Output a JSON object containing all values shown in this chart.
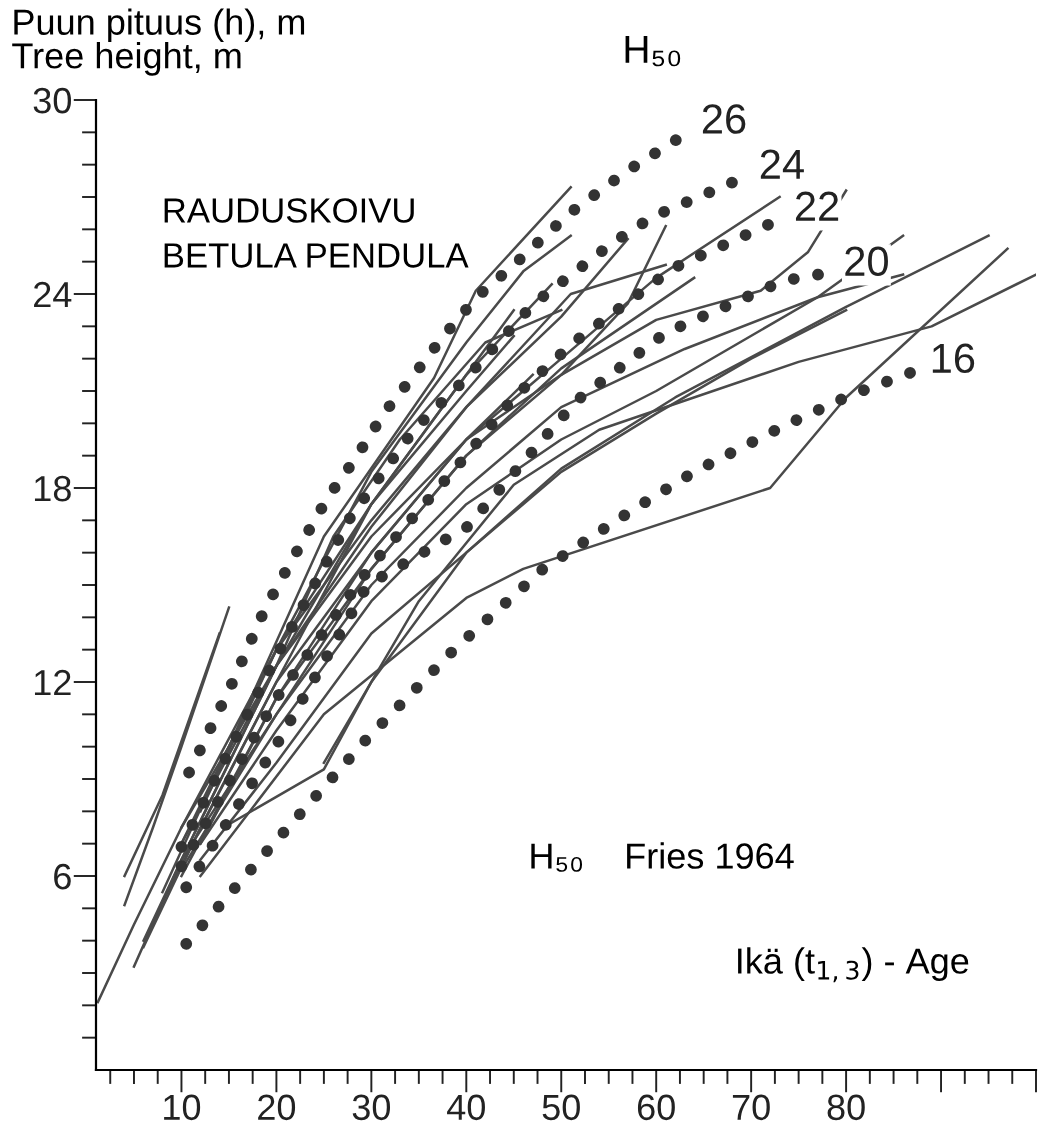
{
  "chart_data": {
    "type": "line",
    "ylabel": "Puun pituus (h), m\nTree height, m",
    "xlabel": "Ikä (t$_{1,3}$) - Age",
    "legend_title": "H₅₀",
    "annotations": [
      "RAUDUSKOIVU\nBETULA PENDULA",
      "H₅₀    Fries 1964"
    ],
    "xlim": [
      1,
      100
    ],
    "ylim": [
      0,
      30
    ],
    "xticks": [
      {
        "value": 2.5,
        "label": null
      },
      {
        "value": 5,
        "label": null
      },
      {
        "value": 7.5,
        "label": null
      },
      10,
      {
        "value": 12.5,
        "label": null
      },
      {
        "value": 15,
        "label": null
      },
      {
        "value": 17.5,
        "label": null
      },
      20,
      {
        "value": 22.5,
        "label": null
      },
      {
        "value": 25,
        "label": null
      },
      {
        "value": 27.5,
        "label": null
      },
      30,
      {
        "value": 32.5,
        "label": null
      },
      {
        "value": 35,
        "label": null
      },
      {
        "value": 37.5,
        "label": null
      },
      40,
      {
        "value": 42.5,
        "label": null
      },
      {
        "value": 45,
        "label": null
      },
      {
        "value": 47.5,
        "label": null
      },
      50,
      {
        "value": 52.5,
        "label": null
      },
      {
        "value": 55,
        "label": null
      },
      {
        "value": 57.5,
        "label": null
      },
      60,
      {
        "value": 62.5,
        "label": null
      },
      {
        "value": 65,
        "label": null
      },
      {
        "value": 67.5,
        "label": null
      },
      70,
      {
        "value": 72.5,
        "label": null
      },
      {
        "value": 75,
        "label": null
      },
      {
        "value": 77.5,
        "label": null
      },
      80,
      {
        "value": 82.5,
        "label": null
      },
      {
        "value": 85,
        "label": null
      },
      {
        "value": 87.5,
        "label": null
      },
      {
        "value": 90,
        "label": null
      },
      {
        "value": 92.5,
        "label": null
      },
      {
        "value": 95,
        "label": null
      },
      {
        "value": 97.5,
        "label": null
      },
      {
        "value": 100,
        "label": null
      }
    ],
    "yticks": [
      {
        "value": 1,
        "label": null
      },
      {
        "value": 2,
        "label": null
      },
      {
        "value": 3,
        "label": null
      },
      {
        "value": 4,
        "label": null
      },
      {
        "value": 5,
        "label": null
      },
      6,
      {
        "value": 7,
        "label": null
      },
      {
        "value": 8,
        "label": null
      },
      {
        "value": 9,
        "label": null
      },
      {
        "value": 10,
        "label": null
      },
      {
        "value": 11,
        "label": null
      },
      12,
      {
        "value": 13,
        "label": null
      },
      {
        "value": 14,
        "label": null
      },
      {
        "value": 15,
        "label": null
      },
      {
        "value": 16,
        "label": null
      },
      {
        "value": 17,
        "label": null
      },
      18,
      {
        "value": 19,
        "label": null
      },
      {
        "value": 20,
        "label": null
      },
      {
        "value": 21,
        "label": null
      },
      {
        "value": 22,
        "label": null
      },
      {
        "value": 23,
        "label": null
      },
      24,
      {
        "value": 25,
        "label": null
      },
      {
        "value": 26,
        "label": null
      },
      {
        "value": 27,
        "label": null
      },
      {
        "value": 28,
        "label": null
      },
      {
        "value": 29,
        "label": null
      },
      30
    ],
    "series": [
      {
        "type": "line",
        "line_style": "solid",
        "color": "#4a4a4a",
        "x": [
          25,
          35,
          45,
          54,
          75,
          89,
          100
        ],
        "values": [
          9.5,
          14.5,
          18.1,
          19.8,
          21.9,
          23,
          24.6
        ]
      },
      {
        "type": "line",
        "line_style": "solid",
        "color": "#4a4a4a",
        "x": [
          12,
          25,
          40,
          46,
          72,
          80,
          97
        ],
        "values": [
          6,
          11,
          14.6,
          15.5,
          18,
          20.8,
          25.4
        ]
      },
      {
        "type": "line",
        "line_style": "solid",
        "color": "#4a4a4a",
        "x": [
          15,
          25,
          30,
          40,
          50,
          62,
          80,
          95
        ],
        "values": [
          7.6,
          9.3,
          12,
          16,
          18.6,
          20.8,
          23.6,
          25.8
        ]
      },
      {
        "type": "line",
        "line_style": "solid",
        "color": "#4a4a4a",
        "x": [
          12,
          20,
          30,
          40,
          50,
          60,
          77,
          86
        ],
        "values": [
          7,
          10.5,
          14.5,
          17.5,
          19.5,
          21,
          23.9,
          25.8
        ]
      },
      {
        "type": "line",
        "line_style": "solid",
        "color": "#4a4a4a",
        "x": [
          10,
          20,
          30,
          40,
          50,
          63,
          77,
          86
        ],
        "values": [
          6.5,
          11,
          15,
          18,
          20.5,
          22.3,
          23.9,
          24.6
        ]
      },
      {
        "type": "line",
        "line_style": "solid",
        "color": "#4a4a4a",
        "x": [
          10,
          20,
          30,
          40,
          50,
          60,
          71,
          76,
          80
        ],
        "values": [
          6,
          11.5,
          15.5,
          19,
          21.5,
          23.2,
          24.1,
          25.3,
          27.2
        ]
      },
      {
        "type": "line",
        "line_style": "solid",
        "color": "#4a4a4a",
        "x": [
          10,
          20,
          30,
          40,
          50,
          60,
          73
        ],
        "values": [
          7,
          12.5,
          16.5,
          19.5,
          22,
          24.5,
          27
        ]
      },
      {
        "type": "line",
        "line_style": "solid",
        "color": "#4a4a4a",
        "x": [
          12,
          20,
          30,
          40,
          50,
          57,
          61
        ],
        "values": [
          7,
          11.5,
          16,
          19.5,
          21.5,
          23.7,
          26.1
        ]
      },
      {
        "type": "line",
        "line_style": "solid",
        "color": "#4a4a4a",
        "x": [
          12,
          20,
          30,
          40,
          51,
          61
        ],
        "values": [
          8,
          13,
          17,
          20.5,
          24,
          24.9
        ]
      },
      {
        "type": "line",
        "line_style": "solid",
        "color": "#4a4a4a",
        "x": [
          10,
          20,
          30,
          40,
          50,
          64
        ],
        "values": [
          6.2,
          11,
          15.5,
          19,
          21.7,
          24.5
        ]
      },
      {
        "type": "line",
        "line_style": "solid",
        "color": "#4a4a4a",
        "x": [
          8,
          15,
          25,
          36.6,
          41,
          51
        ],
        "values": [
          5.5,
          10,
          16.5,
          21.4,
          24.1,
          27.3
        ]
      },
      {
        "type": "line",
        "line_style": "solid",
        "color": "#4a4a4a",
        "x": [
          10,
          20,
          30,
          40,
          46,
          51
        ],
        "values": [
          7,
          13,
          18.5,
          22.5,
          24.7,
          25.8
        ]
      },
      {
        "type": "line",
        "line_style": "solid",
        "color": "#4a4a4a",
        "x": [
          10,
          20,
          30,
          40,
          50,
          57
        ],
        "values": [
          7.5,
          12.5,
          16.8,
          20.5,
          23.3,
          25.7
        ]
      },
      {
        "type": "line",
        "line_style": "solid",
        "color": "#4a4a4a",
        "x": [
          8,
          20,
          30,
          40,
          49
        ],
        "values": [
          5.2,
          12,
          17.5,
          21.5,
          24.3
        ]
      },
      {
        "type": "line",
        "line_style": "solid",
        "color": "#4a4a4a",
        "x": [
          12,
          20,
          30,
          40,
          50,
          60,
          70,
          80
        ],
        "values": [
          6.5,
          9.5,
          13.5,
          16,
          18.5,
          20.3,
          22,
          23.5
        ]
      },
      {
        "type": "line",
        "line_style": "solid",
        "color": "#4a4a4a",
        "x": [
          4,
          7,
          10,
          15
        ],
        "values": [
          5.1,
          7.5,
          10,
          14.3
        ]
      },
      {
        "type": "line",
        "line_style": "solid",
        "color": "#4a4a4a",
        "x": [
          4,
          8,
          11,
          14
        ],
        "values": [
          6,
          8.5,
          11,
          13.5
        ]
      },
      {
        "type": "line",
        "line_style": "solid",
        "color": "#4a4a4a",
        "x": [
          1.2,
          5,
          10,
          20,
          30,
          40,
          45
        ],
        "values": [
          2.1,
          4.5,
          7.5,
          13,
          17.5,
          21,
          22.7
        ]
      },
      {
        "type": "line",
        "line_style": "solid",
        "color": "#4a4a4a",
        "x": [
          5,
          10,
          20,
          30,
          40,
          45
        ],
        "values": [
          3.2,
          6.5,
          12.5,
          17.5,
          21.5,
          23.5
        ]
      },
      {
        "type": "line",
        "line_style": "solid",
        "color": "#4a4a4a",
        "x": [
          6,
          12,
          20,
          30,
          40,
          47
        ],
        "values": [
          3.8,
          7.5,
          12,
          16,
          19.5,
          21.5
        ]
      },
      {
        "type": "line",
        "line_style": "solid",
        "color": "#4a4a4a",
        "x": [
          6,
          10,
          20,
          26,
          33,
          42,
          50
        ],
        "values": [
          4,
          6.5,
          12.5,
          16.5,
          19.5,
          22.5,
          23.5
        ]
      },
      {
        "type": "line",
        "line_style": "dotted",
        "name": "26",
        "color": "#333333",
        "x": [
          10.8,
          11.8,
          15.4,
          18.7,
          21.3,
          25.4,
          28.3,
          31.3,
          34.5,
          37.6,
          41.1,
          45,
          50.9,
          56.9,
          63.9
        ],
        "values": [
          9.2,
          9.8,
          12,
          14.2,
          15.6,
          17.7,
          18.9,
          20.3,
          21.5,
          22.7,
          23.9,
          24.9,
          26.5,
          27.8,
          29.1
        ]
      },
      {
        "type": "line",
        "line_style": "dotted",
        "name": "24",
        "color": "#333333",
        "x": [
          10,
          20,
          27.8,
          34.5,
          40,
          47.1,
          55.5,
          59.7,
          70
        ],
        "values": [
          6.9,
          12.8,
          17.1,
          19.8,
          21.4,
          23.7,
          25.6,
          26.4,
          27.7
        ]
      },
      {
        "type": "line",
        "line_style": "dotted",
        "name": "22",
        "color": "#333333",
        "x": [
          10,
          20,
          30,
          40,
          45,
          51.3,
          61.8,
          73.7
        ],
        "values": [
          6.3,
          11.5,
          15.6,
          19,
          20.8,
          22.5,
          24.8,
          26.4
        ]
      },
      {
        "type": "line",
        "line_style": "dotted",
        "name": "20",
        "color": "#333333",
        "x": [
          10.5,
          20.1,
          29.6,
          40.1,
          51.6,
          61,
          73.3,
          78.9
        ],
        "values": [
          5.65,
          10.1,
          15,
          16.8,
          20.7,
          22.8,
          24.4,
          24.7
        ]
      },
      {
        "type": "line",
        "line_style": "dotted",
        "name": "16",
        "color": "#333333",
        "x": [
          10.5,
          19.1,
          29.4,
          38.7,
          48.1,
          57.4,
          64,
          73.3,
          80.3,
          88
        ],
        "values": [
          3.9,
          6.8,
          10.2,
          13,
          15.5,
          17.3,
          18.5,
          19.9,
          20.85,
          21.7
        ]
      }
    ]
  }
}
